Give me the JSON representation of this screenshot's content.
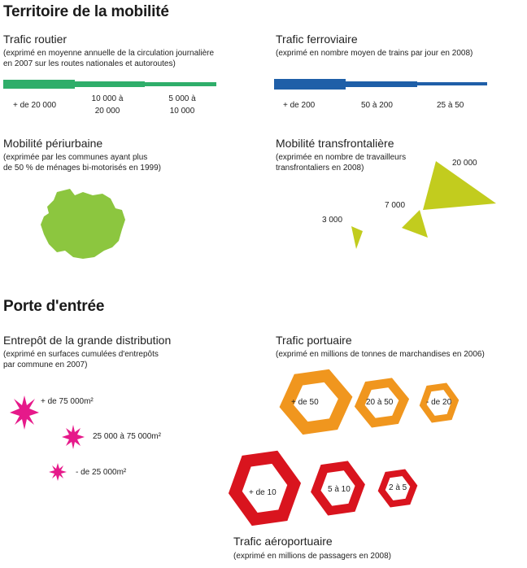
{
  "titles": {
    "mobility": "Territoire de la mobilité",
    "gateway": "Porte d'entrée"
  },
  "road": {
    "title": "Trafic routier",
    "subtitle_1": "(exprimé en moyenne annuelle de la circulation journalière",
    "subtitle_2": "en 2007 sur les routes nationales et autoroutes)",
    "color": "#2fae6a",
    "classes": [
      {
        "label_1": "+ de 20 000",
        "label_2": ""
      },
      {
        "label_1": "10 000 à",
        "label_2": "20 000"
      },
      {
        "label_1": "5 000 à",
        "label_2": "10 000"
      }
    ]
  },
  "rail": {
    "title": "Trafic ferroviaire",
    "subtitle_1": "(exprimé en nombre moyen de trains par jour en 2008)",
    "color": "#1f5fa8",
    "classes": [
      {
        "label": "+ de 200"
      },
      {
        "label": "50  à 200"
      },
      {
        "label": "25 à 50"
      }
    ]
  },
  "periurban": {
    "title": "Mobilité périurbaine",
    "subtitle_1": "(exprimée par les communes ayant plus",
    "subtitle_2": "de 50 % de ménages bi-motorisés en 1999)",
    "color": "#8cc63f"
  },
  "crossborder": {
    "title": "Mobilité transfrontalière",
    "subtitle_1": "(exprimée en nombre de travailleurs",
    "subtitle_2": "transfrontaliers en 2008)",
    "color": "#c2cc1e",
    "values": [
      {
        "label": "3 000",
        "value": 3000
      },
      {
        "label": "7 000",
        "value": 7000
      },
      {
        "label": "20 000",
        "value": 20000
      }
    ]
  },
  "warehouse": {
    "title": "Entrepôt de la grande distribution",
    "subtitle_1": "(exprimé en surfaces cumulées d'entrepôts",
    "subtitle_2": "par commune en 2007)",
    "color": "#e6198a",
    "classes": [
      {
        "label": "+ de 75 000m²"
      },
      {
        "label": "25 000 à 75 000m²"
      },
      {
        "label": "- de 25 000m²"
      }
    ]
  },
  "port": {
    "title": "Trafic portuaire",
    "subtitle_1": "(exprimé en millions de tonnes de marchandises en 2006)",
    "color": "#f0961e",
    "classes": [
      {
        "label": "+ de 50"
      },
      {
        "label": "20 à 50"
      },
      {
        "label": "- de 20"
      }
    ]
  },
  "airport": {
    "title": "Trafic aéroportuaire",
    "subtitle_1": "(exprimé en millions de passagers en 2008)",
    "color": "#d9141e",
    "classes": [
      {
        "label": "+ de 10"
      },
      {
        "label": "5 à 10"
      },
      {
        "label": "2 à 5"
      }
    ]
  }
}
